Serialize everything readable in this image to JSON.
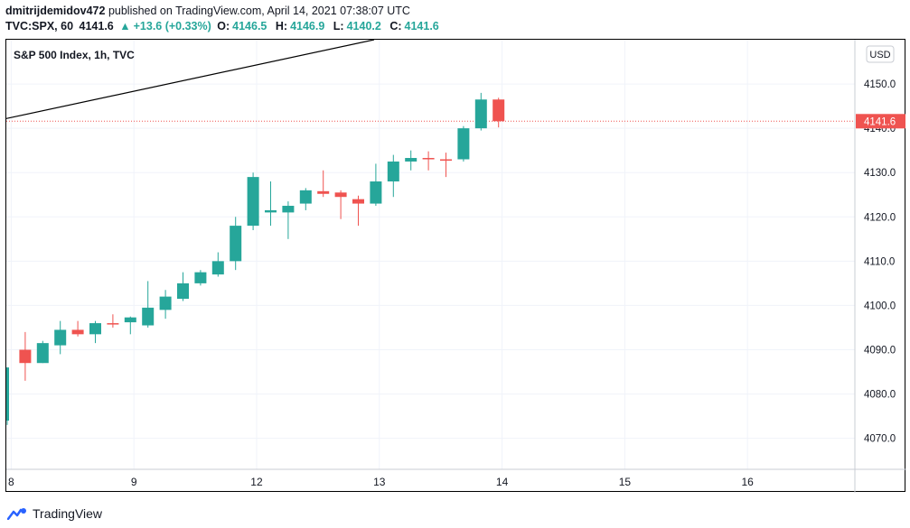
{
  "header": {
    "author": "dmitrijdemidov472",
    "published_text": "published on TradingView.com, April 14, 2021 07:38:07 UTC",
    "symbol": "TVC:SPX, 60",
    "last": "4141.6",
    "change": "+13.6 (+0.33%)",
    "o_label": "O:",
    "o_value": "4146.5",
    "h_label": "H:",
    "h_value": "4146.9",
    "l_label": "L:",
    "l_value": "4140.2",
    "c_label": "C:",
    "c_value": "4141.6"
  },
  "footer": {
    "brand": "TradingView"
  },
  "colors": {
    "up": "#26a69a",
    "down": "#ef5350",
    "grid": "#f0f3fa",
    "text": "#131722",
    "price_line": "#ef5350"
  },
  "chart_data": {
    "type": "candlestick",
    "title": "S&P 500 Index, 1h, TVC",
    "currency": "USD",
    "ylim": [
      4063,
      4160
    ],
    "yticks": [
      4070.0,
      4080.0,
      4090.0,
      4100.0,
      4110.0,
      4120.0,
      4130.0,
      4140.0,
      4150.0
    ],
    "ytick_labels": [
      "4070.0",
      "4080.0",
      "4090.0",
      "4100.0",
      "4110.0",
      "4120.0",
      "4130.0",
      "4140.0",
      "4150.0"
    ],
    "xticks": [
      {
        "label": "8",
        "slot": 0.2
      },
      {
        "label": "9",
        "slot": 7.2
      },
      {
        "label": "12",
        "slot": 14.2
      },
      {
        "label": "13",
        "slot": 21.2
      },
      {
        "label": "14",
        "slot": 28.2
      },
      {
        "label": "15",
        "slot": 35.2
      },
      {
        "label": "16",
        "slot": 42.2
      }
    ],
    "last_price": 4141.6,
    "last_price_label": "4141.6",
    "candles": [
      {
        "o": 4074,
        "h": 4086,
        "l": 4073,
        "c": 4086,
        "partial": true
      },
      {
        "o": 4090,
        "h": 4094,
        "l": 4083,
        "c": 4087
      },
      {
        "o": 4087,
        "h": 4092,
        "l": 4087,
        "c": 4091.5
      },
      {
        "o": 4091,
        "h": 4096.5,
        "l": 4089,
        "c": 4094.5
      },
      {
        "o": 4094.5,
        "h": 4096.5,
        "l": 4093,
        "c": 4093.5
      },
      {
        "o": 4093.5,
        "h": 4096.5,
        "l": 4091.5,
        "c": 4096
      },
      {
        "o": 4096,
        "h": 4098,
        "l": 4095,
        "c": 4095.7
      },
      {
        "o": 4096.2,
        "h": 4097.5,
        "l": 4093.5,
        "c": 4097.3
      },
      {
        "o": 4095.5,
        "h": 4105.5,
        "l": 4095,
        "c": 4099.5
      },
      {
        "o": 4099,
        "h": 4103.5,
        "l": 4097,
        "c": 4102
      },
      {
        "o": 4101.5,
        "h": 4107.5,
        "l": 4101,
        "c": 4105
      },
      {
        "o": 4105,
        "h": 4108,
        "l": 4104.5,
        "c": 4107.5
      },
      {
        "o": 4107,
        "h": 4112,
        "l": 4106.5,
        "c": 4110
      },
      {
        "o": 4110,
        "h": 4120,
        "l": 4108,
        "c": 4118
      },
      {
        "o": 4118,
        "h": 4130,
        "l": 4117,
        "c": 4129
      },
      {
        "o": 4121,
        "h": 4128,
        "l": 4118,
        "c": 4121.5
      },
      {
        "o": 4121,
        "h": 4123.5,
        "l": 4115,
        "c": 4122.5
      },
      {
        "o": 4123,
        "h": 4126.5,
        "l": 4121.5,
        "c": 4126
      },
      {
        "o": 4125.8,
        "h": 4130.5,
        "l": 4124.5,
        "c": 4125.2
      },
      {
        "o": 4125.5,
        "h": 4126,
        "l": 4119.5,
        "c": 4124.5
      },
      {
        "o": 4124,
        "h": 4124.8,
        "l": 4118,
        "c": 4123
      },
      {
        "o": 4123,
        "h": 4132,
        "l": 4122.5,
        "c": 4128
      },
      {
        "o": 4128,
        "h": 4134,
        "l": 4124.5,
        "c": 4132.5
      },
      {
        "o": 4132.5,
        "h": 4135,
        "l": 4130.5,
        "c": 4133.3
      },
      {
        "o": 4133.3,
        "h": 4134.8,
        "l": 4130.5,
        "c": 4133
      },
      {
        "o": 4133,
        "h": 4134.5,
        "l": 4129,
        "c": 4132.8
      },
      {
        "o": 4133,
        "h": 4140.5,
        "l": 4132.5,
        "c": 4140
      },
      {
        "o": 4140,
        "h": 4148,
        "l": 4139.5,
        "c": 4146.5
      },
      {
        "o": 4146.5,
        "h": 4146.9,
        "l": 4140.2,
        "c": 4141.6
      }
    ],
    "trendline": {
      "x1": 0.0,
      "y1": 4142.2,
      "x2": 20.9,
      "y2": 4160.0
    }
  }
}
